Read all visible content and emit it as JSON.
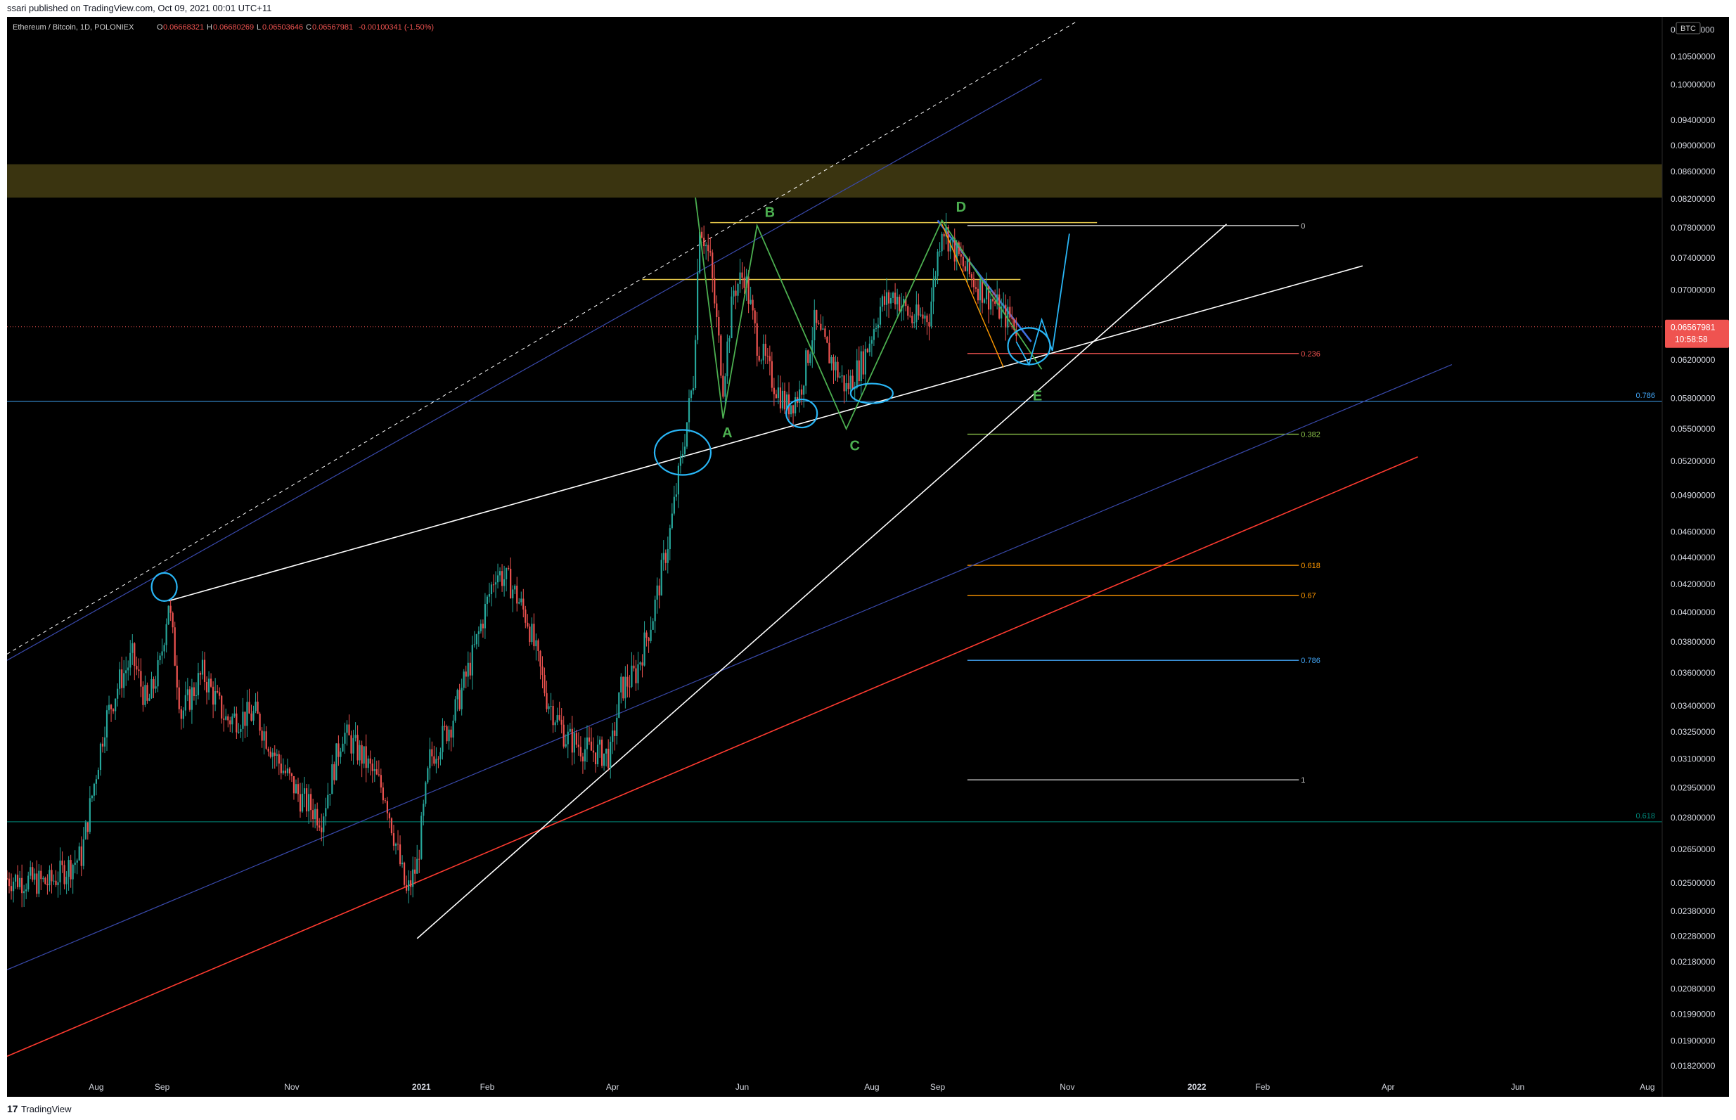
{
  "header": {
    "publisher_line": "ssari published on TradingView.com, Oct 09, 2021 00:01 UTC+11"
  },
  "footer": {
    "logo_glyph": "17",
    "brand": "TradingView"
  },
  "colors": {
    "background": "#000000",
    "candle_up": "#26a69a",
    "candle_down": "#ef5350",
    "price_label_bg": "#ef5350",
    "resistance_zone": "#3a3410"
  },
  "chart_data": {
    "type": "candlestick",
    "symbol_line": {
      "name": "Ethereum / Bitcoin, 1D, POLONIEX",
      "o_label": "O",
      "o": "0.06668321",
      "h_label": "H",
      "h": "0.06680269",
      "l_label": "L",
      "l": "0.06503646",
      "c_label": "C",
      "c": "0.06567981",
      "change": "-0.00100341 (-1.50%)"
    },
    "currency_badge": "BTC",
    "y_scale": "log",
    "ylim": [
      0.0178,
      0.1125
    ],
    "y_ticks": [
      "0.11000000",
      "0.10500000",
      "0.10000000",
      "0.09400000",
      "0.09000000",
      "0.08600000",
      "0.08200000",
      "0.07800000",
      "0.07400000",
      "0.07000000",
      "0.06600000",
      "0.06200000",
      "0.05800000",
      "0.05500000",
      "0.05200000",
      "0.04900000",
      "0.04600000",
      "0.04400000",
      "0.04200000",
      "0.04000000",
      "0.03800000",
      "0.03600000",
      "0.03400000",
      "0.03250000",
      "0.03100000",
      "0.02950000",
      "0.02800000",
      "0.02650000",
      "0.02500000",
      "0.02380000",
      "0.02280000",
      "0.02180000",
      "0.02080000",
      "0.01990000",
      "0.01900000",
      "0.01820000"
    ],
    "x_range": [
      "2020-06-20",
      "2022-08-08"
    ],
    "x_ticks": [
      {
        "date": "2020-08-01",
        "label": "Aug",
        "bold": false
      },
      {
        "date": "2020-09-01",
        "label": "Sep",
        "bold": false
      },
      {
        "date": "2020-11-01",
        "label": "Nov",
        "bold": false
      },
      {
        "date": "2021-01-01",
        "label": "2021",
        "bold": true
      },
      {
        "date": "2021-02-01",
        "label": "Feb",
        "bold": false
      },
      {
        "date": "2021-04-01",
        "label": "Apr",
        "bold": false
      },
      {
        "date": "2021-06-01",
        "label": "Jun",
        "bold": false
      },
      {
        "date": "2021-08-01",
        "label": "Aug",
        "bold": false
      },
      {
        "date": "2021-09-01",
        "label": "Sep",
        "bold": false
      },
      {
        "date": "2021-11-01",
        "label": "Nov",
        "bold": false
      },
      {
        "date": "2022-01-01",
        "label": "2022",
        "bold": true
      },
      {
        "date": "2022-02-01",
        "label": "Feb",
        "bold": false
      },
      {
        "date": "2022-04-01",
        "label": "Apr",
        "bold": false
      },
      {
        "date": "2022-06-01",
        "label": "Jun",
        "bold": false
      },
      {
        "date": "2022-08-01",
        "label": "Aug",
        "bold": false
      }
    ],
    "price_path": [
      [
        "2020-06-20",
        0.0252
      ],
      [
        "2020-07-10",
        0.025
      ],
      [
        "2020-07-25",
        0.0262
      ],
      [
        "2020-08-05",
        0.033
      ],
      [
        "2020-08-12",
        0.0355
      ],
      [
        "2020-08-18",
        0.037
      ],
      [
        "2020-08-25",
        0.034
      ],
      [
        "2020-08-31",
        0.0365
      ],
      [
        "2020-09-04",
        0.0408
      ],
      [
        "2020-09-10",
        0.0335
      ],
      [
        "2020-09-20",
        0.036
      ],
      [
        "2020-10-01",
        0.0332
      ],
      [
        "2020-10-15",
        0.0335
      ],
      [
        "2020-10-25",
        0.031
      ],
      [
        "2020-11-05",
        0.029
      ],
      [
        "2020-11-15",
        0.028
      ],
      [
        "2020-11-25",
        0.0325
      ],
      [
        "2020-12-05",
        0.031
      ],
      [
        "2020-12-15",
        0.0292
      ],
      [
        "2020-12-25",
        0.0245
      ],
      [
        "2020-12-30",
        0.0258
      ],
      [
        "2021-01-05",
        0.031
      ],
      [
        "2021-01-15",
        0.033
      ],
      [
        "2021-01-25",
        0.037
      ],
      [
        "2021-02-05",
        0.043
      ],
      [
        "2021-02-12",
        0.042
      ],
      [
        "2021-02-20",
        0.0395
      ],
      [
        "2021-03-01",
        0.0345
      ],
      [
        "2021-03-10",
        0.0322
      ],
      [
        "2021-03-20",
        0.0315
      ],
      [
        "2021-03-31",
        0.0312
      ],
      [
        "2021-04-05",
        0.035
      ],
      [
        "2021-04-12",
        0.036
      ],
      [
        "2021-04-20",
        0.0398
      ],
      [
        "2021-04-28",
        0.046
      ],
      [
        "2021-05-04",
        0.053
      ],
      [
        "2021-05-09",
        0.06
      ],
      [
        "2021-05-12",
        0.079
      ],
      [
        "2021-05-17",
        0.0735
      ],
      [
        "2021-05-23",
        0.0595
      ],
      [
        "2021-05-28",
        0.07
      ],
      [
        "2021-06-02",
        0.072
      ],
      [
        "2021-06-08",
        0.064
      ],
      [
        "2021-06-15",
        0.06
      ],
      [
        "2021-06-22",
        0.0572
      ],
      [
        "2021-06-28",
        0.0585
      ],
      [
        "2021-07-05",
        0.066
      ],
      [
        "2021-07-12",
        0.0625
      ],
      [
        "2021-07-20",
        0.059
      ],
      [
        "2021-07-28",
        0.062
      ],
      [
        "2021-08-05",
        0.068
      ],
      [
        "2021-08-12",
        0.0695
      ],
      [
        "2021-08-20",
        0.0665
      ],
      [
        "2021-08-28",
        0.067
      ],
      [
        "2021-09-03",
        0.0785
      ],
      [
        "2021-09-08",
        0.0755
      ],
      [
        "2021-09-14",
        0.0725
      ],
      [
        "2021-09-20",
        0.0705
      ],
      [
        "2021-09-26",
        0.069
      ],
      [
        "2021-10-02",
        0.067
      ],
      [
        "2021-10-06",
        0.0665
      ],
      [
        "2021-10-08",
        0.06567981
      ]
    ],
    "last_price": {
      "value": 0.06567981,
      "label": "0.06567981",
      "countdown": "10:58:58"
    },
    "zone": {
      "low": 0.0822,
      "high": 0.0871
    },
    "fib_extension": {
      "start": "2021-09-15",
      "end": "2022-02-18",
      "label_date": "2022-02-19",
      "levels": [
        {
          "label": "0",
          "price": 0.0783,
          "color": "#cccccc"
        },
        {
          "label": "0.236",
          "price": 0.0627,
          "color": "#ef5350"
        },
        {
          "label": "0.382",
          "price": 0.0545,
          "color": "#8bc34a"
        },
        {
          "label": "0.618",
          "price": 0.0434,
          "color": "#ff9800"
        },
        {
          "label": "0.67",
          "price": 0.0412,
          "color": "#ff9800"
        },
        {
          "label": "0.786",
          "price": 0.0368,
          "color": "#42a5f5"
        },
        {
          "label": "1",
          "price": 0.0299,
          "color": "#cccccc"
        }
      ]
    },
    "hlines": [
      {
        "price": 0.0577,
        "color": "#42a5f5",
        "label": "0.786"
      },
      {
        "price": 0.0278,
        "color": "#00897b",
        "label": "0.618"
      }
    ],
    "trendlines": [
      {
        "p1": [
          "2020-06-20",
          0.0372
        ],
        "p2": [
          "2021-11-05",
          0.1115
        ],
        "color": "#ffffff",
        "dash": true,
        "w": 1
      },
      {
        "p1": [
          "2020-06-20",
          0.0368
        ],
        "p2": [
          "2021-10-20",
          0.101
        ],
        "color": "#3949ab",
        "dash": false,
        "w": 1.2
      },
      {
        "p1": [
          "2020-06-20",
          0.0215
        ],
        "p2": [
          "2022-05-01",
          0.0615
        ],
        "color": "#3949ab",
        "dash": false,
        "w": 1.2
      },
      {
        "p1": [
          "2020-06-20",
          0.0185
        ],
        "p2": [
          "2022-04-15",
          0.0524
        ],
        "color": "#ff3b30",
        "dash": false,
        "w": 1.6
      },
      {
        "p1": [
          "2020-09-04",
          0.0408
        ],
        "p2": [
          "2022-03-20",
          0.073
        ],
        "color": "#ffffff",
        "dash": false,
        "w": 1.6
      },
      {
        "p1": [
          "2020-12-30",
          0.0227
        ],
        "p2": [
          "2022-01-15",
          0.0785
        ],
        "color": "#ffffff",
        "dash": false,
        "w": 1.6
      },
      {
        "p1": [
          "2021-04-15",
          0.0713
        ],
        "p2": [
          "2021-10-10",
          0.0713
        ],
        "color": "#e6c84a",
        "dash": false,
        "w": 1.6
      },
      {
        "p1": [
          "2021-05-17",
          0.0787
        ],
        "p2": [
          "2021-11-15",
          0.0787
        ],
        "color": "#e6c84a",
        "dash": false,
        "w": 1.6
      },
      {
        "p1": [
          "2021-09-01",
          0.079
        ],
        "p2": [
          "2021-10-15",
          0.064
        ],
        "color": "#3f6fe0",
        "dash": false,
        "w": 2.6
      }
    ],
    "wave_path": {
      "color": "#4caf50",
      "points": [
        [
          "2021-05-10",
          0.0822
        ],
        [
          "2021-05-23",
          0.056
        ],
        [
          "2021-06-08",
          0.0783
        ],
        [
          "2021-07-20",
          0.055
        ],
        [
          "2021-09-03",
          0.079
        ],
        [
          "2021-10-20",
          0.061
        ]
      ]
    },
    "projection_path": {
      "color": "#29b6f6",
      "points": [
        [
          "2021-10-08",
          0.064
        ],
        [
          "2021-10-14",
          0.0615
        ],
        [
          "2021-10-20",
          0.0665
        ],
        [
          "2021-10-25",
          0.063
        ],
        [
          "2021-11-02",
          0.0772
        ]
      ]
    },
    "orange_line": {
      "color": "#ff9800",
      "points": [
        [
          "2021-09-03",
          0.0785
        ],
        [
          "2021-10-02",
          0.0612
        ]
      ]
    },
    "wave_labels": [
      {
        "text": "A",
        "date": "2021-05-25",
        "price": 0.0542,
        "color": "#4caf50"
      },
      {
        "text": "B",
        "date": "2021-06-14",
        "price": 0.0795,
        "color": "#4caf50"
      },
      {
        "text": "C",
        "date": "2021-07-24",
        "price": 0.053,
        "color": "#4caf50"
      },
      {
        "text": "D",
        "date": "2021-09-12",
        "price": 0.0802,
        "color": "#4caf50"
      },
      {
        "text": "E",
        "date": "2021-10-18",
        "price": 0.0578,
        "color": "#4caf50"
      }
    ],
    "circles": [
      {
        "date": "2020-09-02",
        "price": 0.0418,
        "rx": 18,
        "ry": 20
      },
      {
        "date": "2021-05-04",
        "price": 0.0528,
        "rx": 40,
        "ry": 32
      },
      {
        "date": "2021-06-29",
        "price": 0.0565,
        "rx": 22,
        "ry": 20
      },
      {
        "date": "2021-08-01",
        "price": 0.0585,
        "rx": 30,
        "ry": 14
      },
      {
        "date": "2021-10-14",
        "price": 0.0635,
        "rx": 30,
        "ry": 26
      }
    ]
  }
}
